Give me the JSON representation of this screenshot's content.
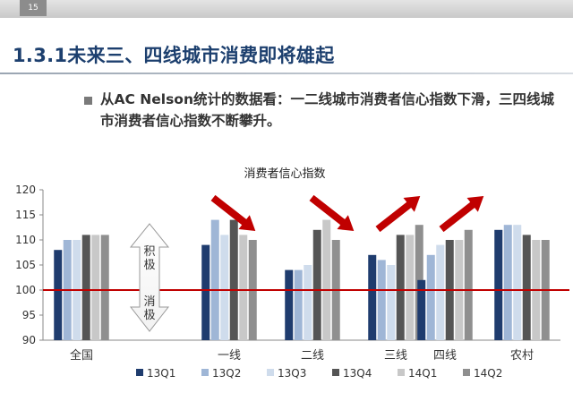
{
  "header": {
    "page_number": "15"
  },
  "slide": {
    "title": "1.3.1未来三、四线城市消费即将雄起",
    "bullet": "从AC Nelson统计的数据看：一二线城市消费者信心指数下滑，三四线城市消费者信心指数不断攀升。"
  },
  "chart_data": {
    "type": "bar",
    "title": "消费者信心指数",
    "categories": [
      "全国",
      "一线",
      "二线",
      "三线",
      "四线",
      "农村"
    ],
    "series": [
      {
        "name": "13Q1",
        "color": "#1f3c6e",
        "values": [
          108,
          109,
          104,
          107,
          102,
          112
        ]
      },
      {
        "name": "13Q2",
        "color": "#9fb6d6",
        "values": [
          110,
          114,
          104,
          106,
          107,
          113
        ]
      },
      {
        "name": "13Q3",
        "color": "#cfdcec",
        "values": [
          110,
          111,
          105,
          105,
          109,
          113
        ]
      },
      {
        "name": "13Q4",
        "color": "#555555",
        "values": [
          111,
          114,
          112,
          111,
          110,
          111
        ]
      },
      {
        "name": "14Q1",
        "color": "#c8c8c8",
        "values": [
          111,
          111,
          114,
          111,
          110,
          110
        ]
      },
      {
        "name": "14Q2",
        "color": "#8f8f8f",
        "values": [
          111,
          110,
          110,
          113,
          112,
          110
        ]
      }
    ],
    "ylim": [
      90,
      120
    ],
    "yticks": [
      90,
      95,
      100,
      105,
      110,
      115,
      120
    ],
    "reference_line": {
      "value": 100,
      "color": "#c00000"
    },
    "legend_position": "bottom",
    "annotations": {
      "positive_label": "积极",
      "negative_label": "消极",
      "arrows": [
        {
          "group": "一线",
          "direction": "down",
          "color": "#c00000"
        },
        {
          "group": "二线",
          "direction": "down",
          "color": "#c00000"
        },
        {
          "group": "三线",
          "direction": "up",
          "color": "#c00000"
        },
        {
          "group": "四线",
          "direction": "up",
          "color": "#c00000"
        }
      ]
    }
  }
}
